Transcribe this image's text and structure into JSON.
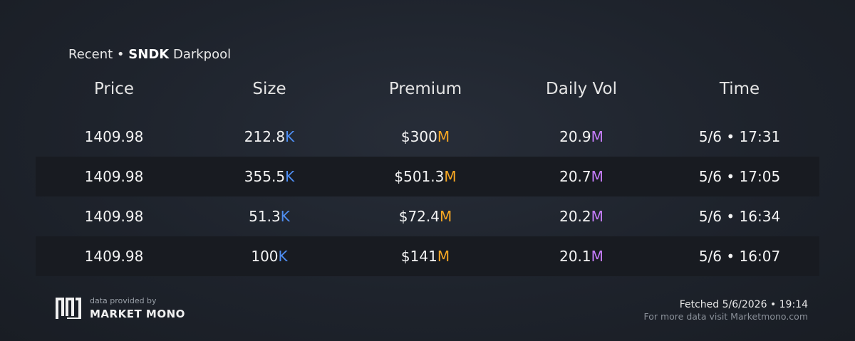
{
  "header": {
    "prefix": "Recent •",
    "ticker": "SNDK",
    "suffix": "Darkpool"
  },
  "table": {
    "columns": [
      "Price",
      "Size",
      "Premium",
      "Daily Vol",
      "Time"
    ],
    "rows": [
      [
        {
          "value": "1409.98"
        },
        {
          "value": "212.8",
          "unit": "K"
        },
        {
          "value": "$300",
          "unit": "M"
        },
        {
          "value": "20.9",
          "unit": "M"
        },
        {
          "value": "5/6 • 17:31"
        }
      ],
      [
        {
          "value": "1409.98"
        },
        {
          "value": "355.5",
          "unit": "K"
        },
        {
          "value": "$501.3",
          "unit": "M"
        },
        {
          "value": "20.7",
          "unit": "M"
        },
        {
          "value": "5/6 • 17:05"
        }
      ],
      [
        {
          "value": "1409.98"
        },
        {
          "value": "51.3",
          "unit": "K"
        },
        {
          "value": "$72.4",
          "unit": "M"
        },
        {
          "value": "20.2",
          "unit": "M"
        },
        {
          "value": "5/6 • 16:34"
        }
      ],
      [
        {
          "value": "1409.98"
        },
        {
          "value": "100",
          "unit": "K"
        },
        {
          "value": "$141",
          "unit": "M"
        },
        {
          "value": "20.1",
          "unit": "M"
        },
        {
          "value": "5/6 • 16:07"
        }
      ]
    ]
  },
  "footer": {
    "provided": "data provided by",
    "brand": "MARKET MONO",
    "fetched": "Fetched 5/6/2026 • 19:14",
    "visit": "For more data visit Marketmono.com"
  }
}
